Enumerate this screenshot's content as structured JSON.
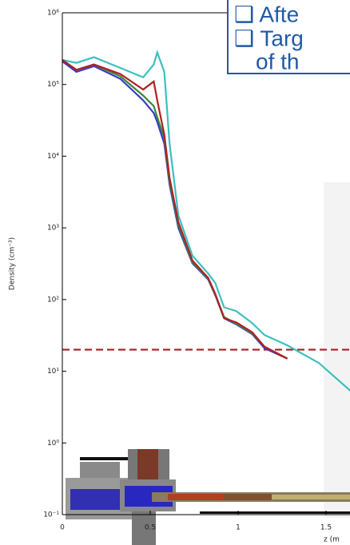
{
  "chart_data": {
    "type": "line",
    "y_label": "Density (cm⁻³)",
    "x_label": "z (m",
    "annotation_lines": [
      "❑ Afte",
      "❑ Targ",
      "of th"
    ],
    "log_y": true,
    "xlim": [
      0,
      2
    ],
    "ylim": [
      0.1,
      1000000
    ],
    "xticks": [
      0,
      0.5,
      1,
      1.5
    ],
    "yticks": [
      {
        "value": 0.1,
        "label": "10⁻¹"
      },
      {
        "value": 1,
        "label": "10⁰"
      },
      {
        "value": 10,
        "label": "10¹"
      },
      {
        "value": 100,
        "label": "10²"
      },
      {
        "value": 1000,
        "label": "10³"
      },
      {
        "value": 10000,
        "label": "10⁴"
      },
      {
        "value": 100000,
        "label": "10⁵"
      },
      {
        "value": 1000000,
        "label": "10⁶"
      }
    ],
    "threshold": {
      "value": 20,
      "color": "#a52020"
    },
    "x": [
      0,
      0.08,
      0.18,
      0.33,
      0.46,
      0.52,
      0.54,
      0.58,
      0.61,
      0.66,
      0.74,
      0.83,
      0.87,
      0.92,
      0.99,
      1.08,
      1.15,
      1.28,
      1.46,
      1.64
    ],
    "series": [
      {
        "color": "#3a3ac8",
        "values": [
          210000,
          150000,
          180000,
          120000,
          60000,
          40000,
          30000,
          15000,
          4000,
          1000,
          320,
          190,
          115,
          55,
          45,
          33,
          21,
          15,
          null,
          null
        ]
      },
      {
        "color": "#3a8a3a",
        "values": [
          220000,
          160000,
          190000,
          130000,
          70000,
          50000,
          35000,
          18000,
          4500,
          1100,
          330,
          195,
          118,
          57,
          46,
          34,
          22,
          15,
          null,
          null
        ]
      },
      {
        "color": "#3dbfbf",
        "values": [
          220000,
          200000,
          240000,
          170000,
          126000,
          190000,
          280000,
          150000,
          15000,
          1500,
          410,
          230,
          170,
          78,
          69,
          47,
          32,
          23,
          13,
          5.3
        ]
      },
      {
        "color": "#b02020",
        "values": [
          220000,
          160000,
          190000,
          140000,
          85000,
          110000,
          60000,
          20000,
          5000,
          1200,
          350,
          200,
          120,
          55,
          48,
          35,
          22,
          15,
          null,
          null
        ]
      }
    ]
  }
}
